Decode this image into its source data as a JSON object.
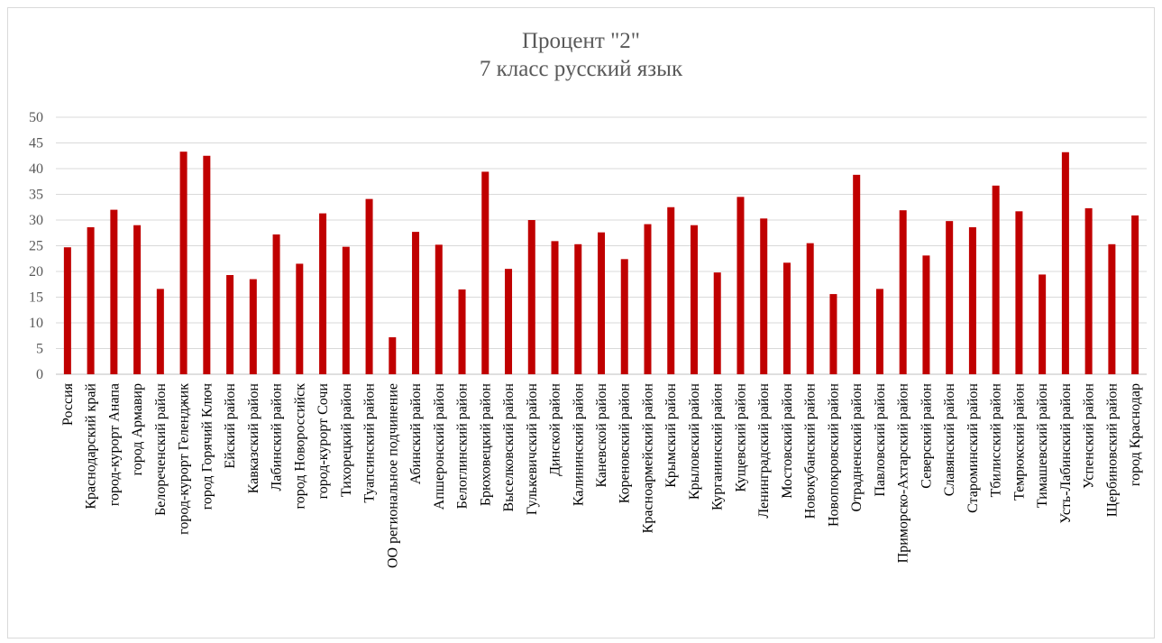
{
  "chart_data": {
    "type": "bar",
    "title": "Процент \"2\"",
    "subtitle": "7 класс русский язык",
    "ylim": [
      0,
      50
    ],
    "ytick_step": 5,
    "grid": true,
    "bar_color": "#c00000",
    "categories": [
      "Россия",
      "Краснодарский край",
      "город-курорт Анапа",
      "город Армавир",
      "Белореченский  район",
      "город-курорт Геленджик",
      "город Горячий Ключ",
      "Ейский  район",
      "Кавказский  район",
      "Лабинский  район",
      "город Новороссийск",
      "город-курорт Сочи",
      "Тихорецкий  район",
      "Туапсинский  район",
      "ОО региональное подчинение",
      "Абинский  район",
      "Апшеронский  район",
      "Белоглинский  район",
      "Брюховецкий  район",
      "Выселковский  район",
      "Гулькевичский  район",
      "Динской  район",
      "Калининский  район",
      "Каневской  район",
      "Кореновский  район",
      "Красноармейский  район",
      "Крымский  район",
      "Крыловский  район",
      "Курганинский  район",
      "Кущевский  район",
      "Ленинградский  район",
      "Мостовский  район",
      "Новокубанский  район",
      "Новопокровский  район",
      "Отрадненский  район",
      "Павловский  район",
      "Приморско-Ахтарский  район",
      "Северский  район",
      "Славянский  район",
      "Староминский  район",
      "Тбилисский  район",
      "Темрюкский  район",
      "Тимашевский  район",
      "Усть-Лабинский  район",
      "Успенский  район",
      "Щербиновский  район",
      "город Краснодар"
    ],
    "values": [
      24.7,
      28.6,
      32.0,
      29.0,
      16.6,
      43.3,
      42.5,
      19.3,
      18.5,
      27.2,
      21.5,
      31.3,
      24.8,
      34.1,
      7.2,
      27.7,
      25.2,
      16.5,
      39.4,
      20.5,
      30.0,
      25.9,
      25.3,
      27.6,
      22.4,
      29.2,
      32.5,
      29.0,
      19.8,
      34.5,
      30.3,
      21.7,
      25.5,
      15.6,
      38.8,
      16.6,
      31.9,
      23.1,
      29.8,
      28.6,
      36.7,
      31.7,
      19.4,
      43.2,
      32.3,
      25.3,
      30.9
    ]
  }
}
